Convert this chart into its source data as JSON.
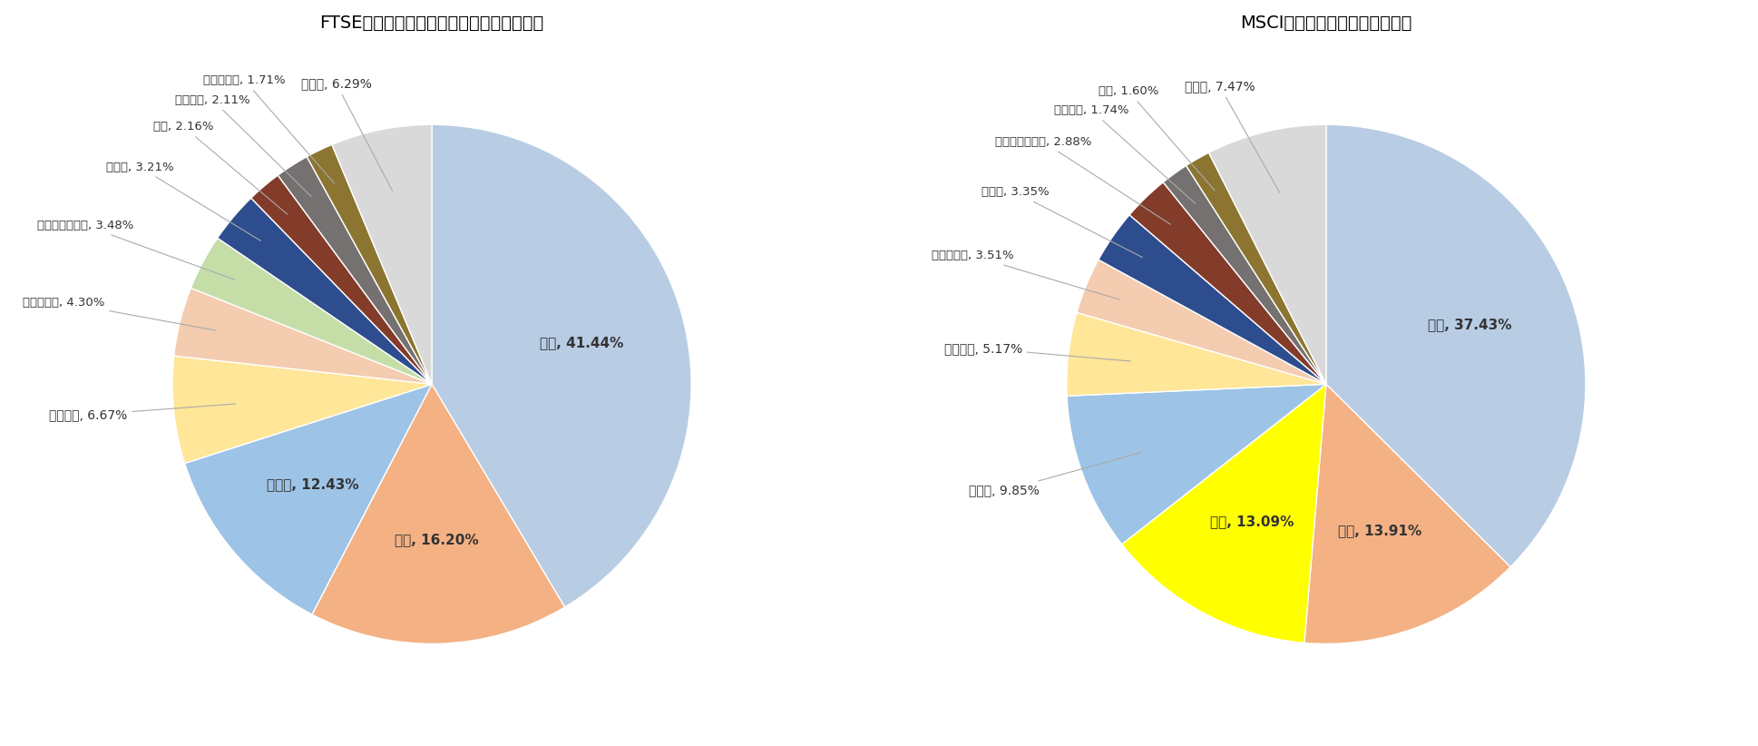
{
  "ftse": {
    "title": "FTSEエマージングマーケットインデックス",
    "labels": [
      "中国",
      "台湾",
      "インド",
      "ブラジル",
      "南アフリカ",
      "サウジアラビア",
      "ロシア",
      "タイ",
      "メキシコ",
      "マレーシア",
      "その他"
    ],
    "values": [
      41.44,
      16.2,
      12.43,
      6.67,
      4.3,
      3.48,
      3.21,
      2.16,
      2.11,
      1.71,
      6.29
    ],
    "colors": [
      "#b8cce4",
      "#f4b183",
      "#9dc3e6",
      "#ffe699",
      "#f4ccb0",
      "#c5dea8",
      "#2e4d8e",
      "#833c2a",
      "#767171",
      "#8b7530",
      "#d9d9d9"
    ]
  },
  "msci": {
    "title": "MSCIエマージングインデックス",
    "labels": [
      "中国",
      "台湾",
      "韓国",
      "インド",
      "ブラジル",
      "南アフリカ",
      "ロシア",
      "サウジアラビア",
      "メキシコ",
      "タイ",
      "その他"
    ],
    "values": [
      37.43,
      13.91,
      13.09,
      9.85,
      5.17,
      3.51,
      3.35,
      2.88,
      1.74,
      1.6,
      7.47
    ],
    "colors": [
      "#b8cce4",
      "#f4b183",
      "#ffff00",
      "#9dc3e6",
      "#ffe699",
      "#f4ccb0",
      "#2e4d8e",
      "#833c2a",
      "#767171",
      "#8b7530",
      "#d9d9d9"
    ]
  },
  "background_color": "#ffffff",
  "title_fontsize": 14,
  "label_fontsize": 10
}
